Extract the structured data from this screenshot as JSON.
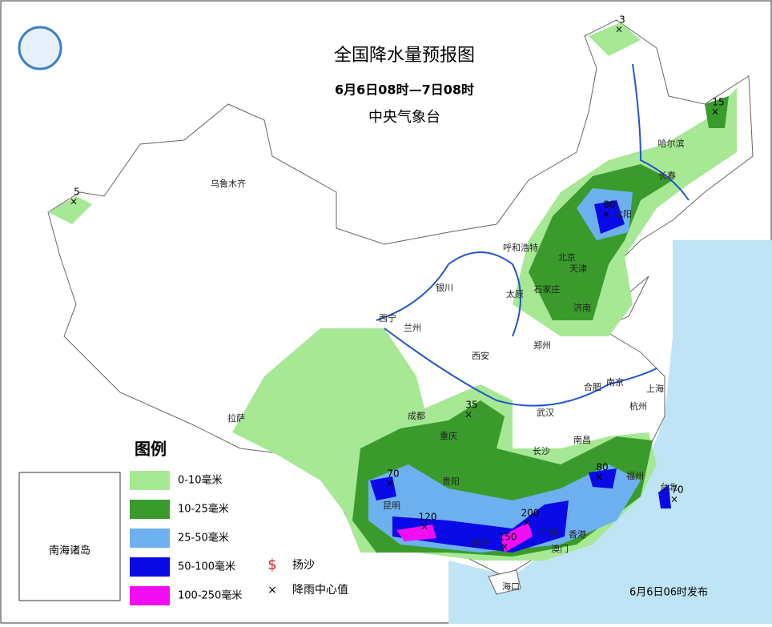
{
  "header": {
    "title": "全国降水量预报图",
    "subtitle": "6月6日08时—7日08时",
    "issuer": "中央气象台"
  },
  "legend": {
    "title": "图例",
    "items": [
      {
        "label": "0-10毫米",
        "color": "#a6e894"
      },
      {
        "label": "10-25毫米",
        "color": "#3a9b2c"
      },
      {
        "label": "25-50毫米",
        "color": "#6db0f0"
      },
      {
        "label": "50-100毫米",
        "color": "#0a0ae6"
      },
      {
        "label": "100-250毫米",
        "color": "#f20ef2"
      }
    ],
    "symbols": [
      {
        "label": "扬沙"
      },
      {
        "label": "降雨中心值"
      }
    ]
  },
  "inset": {
    "label": "南海诸岛"
  },
  "footer": "6月6日06时发布",
  "cities": [
    "乌鲁木齐",
    "哈尔滨",
    "长春",
    "沈阳",
    "呼和浩特",
    "北京",
    "天津",
    "石家庄",
    "太原",
    "济南",
    "银川",
    "西宁",
    "兰州",
    "西安",
    "郑州",
    "合肥",
    "南京",
    "上海",
    "杭州",
    "拉萨",
    "成都",
    "重庆",
    "武汉",
    "长沙",
    "南昌",
    "福州",
    "贵阳",
    "昆明",
    "南宁",
    "广州",
    "香港",
    "澳门",
    "海口",
    "台北"
  ],
  "rain_centers": [
    3,
    15,
    5,
    80,
    35,
    70,
    80,
    70,
    120,
    200,
    150
  ]
}
